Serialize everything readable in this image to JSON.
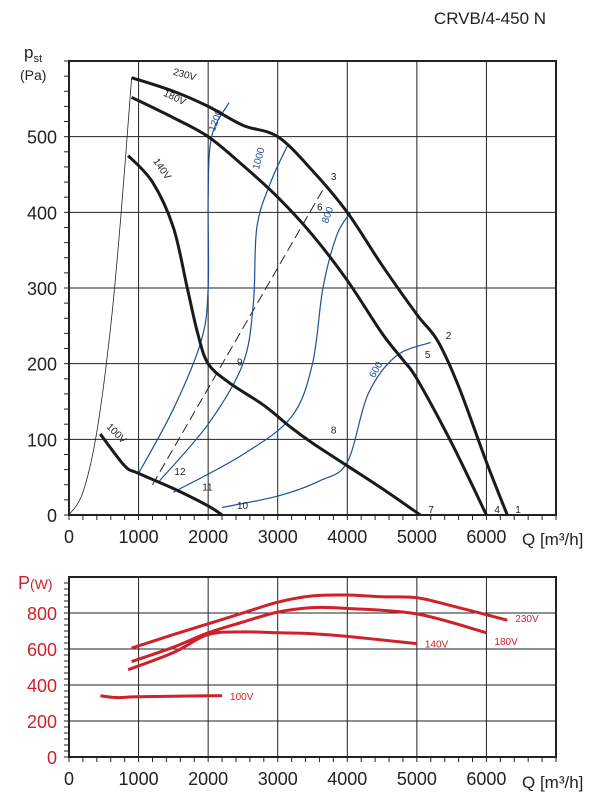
{
  "title": "CRVB/4-450 N",
  "chart_data": [
    {
      "type": "line",
      "name": "pressure",
      "ylabel_main": "p",
      "ylabel_sub": "st",
      "ylabel_unit": "(Pa)",
      "xlabel": "Q [m³/h]",
      "xlim": [
        0,
        7000
      ],
      "ylim": [
        0,
        600
      ],
      "xticks": [
        0,
        1000,
        2000,
        3000,
        4000,
        5000,
        6000
      ],
      "yticks": [
        0,
        100,
        200,
        300,
        400,
        500
      ],
      "grid": true,
      "series": [
        {
          "name": "230V",
          "x": [
            900,
            1500,
            2000,
            2500,
            3000,
            3500,
            4000,
            4500,
            5000,
            5300,
            5600,
            6000,
            6300
          ],
          "y": [
            578,
            560,
            540,
            515,
            500,
            455,
            400,
            330,
            265,
            230,
            170,
            70,
            0
          ]
        },
        {
          "name": "180V",
          "x": [
            900,
            1500,
            2000,
            2500,
            3000,
            3500,
            4000,
            4500,
            4800,
            5000,
            5500,
            6000
          ],
          "y": [
            552,
            525,
            500,
            462,
            420,
            370,
            310,
            240,
            205,
            180,
            95,
            0
          ]
        },
        {
          "name": "140V",
          "x": [
            850,
            1200,
            1500,
            1700,
            1850,
            2000,
            2300,
            2800,
            3200,
            3500,
            4000,
            4500,
            5050
          ],
          "y": [
            475,
            440,
            380,
            300,
            240,
            200,
            175,
            145,
            115,
            95,
            65,
            35,
            0
          ]
        },
        {
          "name": "100V",
          "x": [
            450,
            800,
            1000,
            1500,
            2000,
            2200
          ],
          "y": [
            107,
            65,
            55,
            35,
            12,
            0
          ]
        }
      ],
      "system_curve": {
        "x": [
          0,
          200,
          400,
          600,
          750,
          900
        ],
        "y": [
          0,
          30,
          110,
          250,
          400,
          578
        ]
      },
      "rpm_curves": [
        {
          "name": "1200",
          "x": [
            1000,
            1500,
            1900,
            2000,
            2000,
            2050,
            2300
          ],
          "y": [
            55,
            140,
            230,
            300,
            420,
            500,
            545
          ]
        },
        {
          "name": "1000",
          "x": [
            1300,
            2000,
            2500,
            2650,
            2700,
            2900,
            3150
          ],
          "y": [
            45,
            120,
            200,
            280,
            380,
            440,
            490
          ]
        },
        {
          "name": "800",
          "x": [
            1500,
            2500,
            3200,
            3500,
            3650,
            3850,
            4050
          ],
          "y": [
            30,
            80,
            130,
            200,
            300,
            370,
            400
          ]
        },
        {
          "name": "600",
          "x": [
            2200,
            3000,
            3600,
            4000,
            4300,
            4700,
            5200
          ],
          "y": [
            10,
            25,
            45,
            70,
            160,
            210,
            228
          ]
        }
      ],
      "dashed_line": {
        "x": [
          1200,
          3650
        ],
        "y": [
          40,
          430
        ]
      },
      "points": [
        {
          "label": "1",
          "x": 6300,
          "y": 0
        },
        {
          "label": "2",
          "x": 5300,
          "y": 230
        },
        {
          "label": "3",
          "x": 3650,
          "y": 440
        },
        {
          "label": "4",
          "x": 6000,
          "y": 0
        },
        {
          "label": "5",
          "x": 5000,
          "y": 205
        },
        {
          "label": "6",
          "x": 3450,
          "y": 400
        },
        {
          "label": "7",
          "x": 5050,
          "y": 0
        },
        {
          "label": "8",
          "x": 3650,
          "y": 105
        },
        {
          "label": "9",
          "x": 2300,
          "y": 195
        },
        {
          "label": "10",
          "x": 2300,
          "y": 5
        },
        {
          "label": "11",
          "x": 1800,
          "y": 30
        },
        {
          "label": "12",
          "x": 1400,
          "y": 50
        }
      ]
    },
    {
      "type": "line",
      "name": "power",
      "ylabel_main": "P",
      "ylabel_unit": "(W)",
      "xlabel": "Q [m³/h]",
      "xlim": [
        0,
        7000
      ],
      "ylim": [
        0,
        1000
      ],
      "xticks": [
        0,
        1000,
        2000,
        3000,
        4000,
        5000,
        6000
      ],
      "yticks": [
        0,
        200,
        400,
        600,
        800
      ],
      "grid": true,
      "color": "#d0202a",
      "series": [
        {
          "name": "230V",
          "x": [
            900,
            1500,
            2000,
            2500,
            3000,
            3500,
            4000,
            4500,
            5000,
            5500,
            6300
          ],
          "y": [
            605,
            680,
            740,
            800,
            860,
            895,
            900,
            890,
            885,
            840,
            760
          ]
        },
        {
          "name": "180V",
          "x": [
            900,
            1500,
            2000,
            2500,
            3000,
            3500,
            4000,
            5000,
            6000
          ],
          "y": [
            530,
            610,
            690,
            750,
            805,
            830,
            825,
            795,
            690
          ]
        },
        {
          "name": "140V",
          "x": [
            850,
            1500,
            2000,
            2500,
            3000,
            3500,
            4000,
            5000
          ],
          "y": [
            485,
            580,
            680,
            695,
            690,
            685,
            670,
            630
          ]
        },
        {
          "name": "100V",
          "x": [
            450,
            700,
            1000,
            2000,
            2200
          ],
          "y": [
            340,
            330,
            335,
            340,
            340
          ]
        }
      ]
    }
  ]
}
